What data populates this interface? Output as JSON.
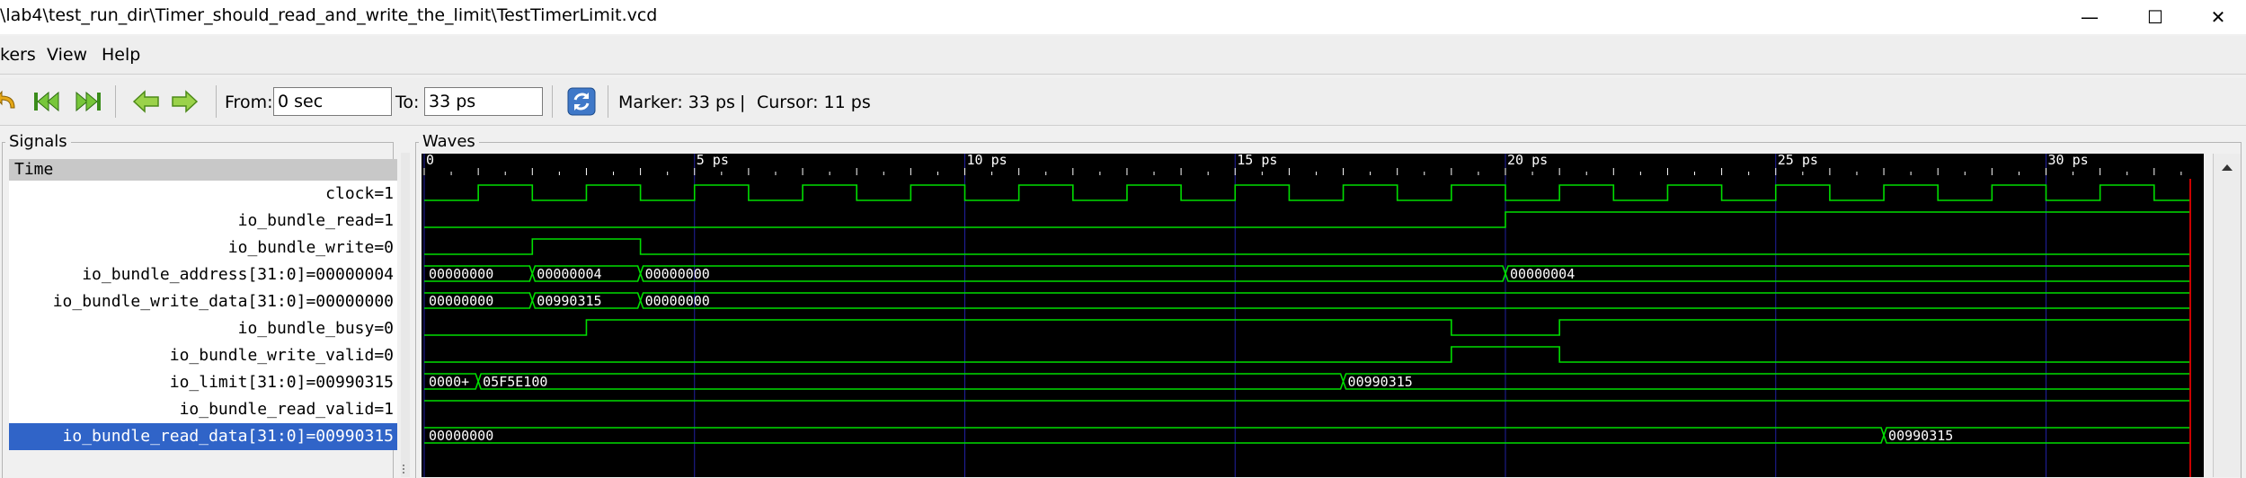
{
  "window": {
    "title": "\\lab4\\test_run_dir\\Timer_should_read_and_write_the_limit\\TestTimerLimit.vcd",
    "minimize_glyph": "—",
    "maximize_glyph": "☐",
    "close_glyph": "✕"
  },
  "menu": [
    {
      "label": "kers"
    },
    {
      "label": "View"
    },
    {
      "label": "Help"
    }
  ],
  "toolbar": {
    "undo_icon": "undo-icon",
    "zoom_start_icon": "zoom-to-start-icon",
    "zoom_end_icon": "zoom-to-end-icon",
    "prev_icon": "left-arrow-icon",
    "next_icon": "right-arrow-icon",
    "from_label": "From:",
    "from_value": "0 sec",
    "to_label": "To:",
    "to_value": "33 ps",
    "reload_icon": "reload-icon",
    "marker_text": "Marker: 33 ps",
    "sep_char": "|",
    "cursor_text": "Cursor: 11 ps"
  },
  "signals_panel": {
    "title": "Signals",
    "header": "Time",
    "rows": [
      {
        "label": "clock=1"
      },
      {
        "label": "io_bundle_read=1"
      },
      {
        "label": "io_bundle_write=0"
      },
      {
        "label": "io_bundle_address[31:0]=00000004"
      },
      {
        "label": "io_bundle_write_data[31:0]=00000000"
      },
      {
        "label": "io_bundle_busy=0"
      },
      {
        "label": "io_bundle_write_valid=0"
      },
      {
        "label": "io_limit[31:0]=00990315"
      },
      {
        "label": "io_bundle_read_valid=1"
      },
      {
        "label": "io_bundle_read_data[31:0]=00990315",
        "selected": true
      }
    ]
  },
  "waves_panel": {
    "title": "Waves",
    "time_ticks": [
      "0",
      "5 ps",
      "10 ps",
      "15 ps",
      "20 ps",
      "25 ps",
      "30 ps"
    ],
    "colors": {
      "background": "#000000",
      "wave": "#00dd00",
      "grid": "#2020a0",
      "marker": "#cc0000",
      "ruler": "#ffffff"
    },
    "time_range_ps": [
      0,
      33
    ],
    "marker_ps": 33,
    "cursor_ps": 11
  },
  "traces": [
    {
      "name": "clock",
      "type": "clock",
      "half_period_ps": 1,
      "start_level": 0
    },
    {
      "name": "io_bundle_read",
      "type": "bit",
      "transitions": [
        [
          0,
          0
        ],
        [
          20,
          1
        ]
      ]
    },
    {
      "name": "io_bundle_write",
      "type": "bit",
      "transitions": [
        [
          0,
          0
        ],
        [
          2,
          1
        ],
        [
          4,
          0
        ]
      ]
    },
    {
      "name": "io_bundle_address",
      "type": "bus",
      "segments": [
        [
          0,
          "00000000"
        ],
        [
          2,
          "00000004"
        ],
        [
          4,
          "00000000"
        ],
        [
          20,
          "00000004"
        ]
      ]
    },
    {
      "name": "io_bundle_write_data",
      "type": "bus",
      "segments": [
        [
          0,
          "00000000"
        ],
        [
          2,
          "00990315"
        ],
        [
          4,
          "00000000"
        ]
      ]
    },
    {
      "name": "io_bundle_busy",
      "type": "bit",
      "transitions": [
        [
          0,
          0
        ],
        [
          3,
          1
        ],
        [
          19,
          0
        ],
        [
          21,
          1
        ]
      ]
    },
    {
      "name": "io_bundle_write_valid",
      "type": "bit",
      "transitions": [
        [
          0,
          0
        ],
        [
          19,
          1
        ],
        [
          21,
          0
        ]
      ]
    },
    {
      "name": "io_limit",
      "type": "bus",
      "segments": [
        [
          0,
          "0000+"
        ],
        [
          1,
          "05F5E100"
        ],
        [
          17,
          "00990315"
        ]
      ]
    },
    {
      "name": "io_bundle_read_valid",
      "type": "bit",
      "transitions": [
        [
          0,
          1
        ]
      ]
    },
    {
      "name": "io_bundle_read_data",
      "type": "bus",
      "segments": [
        [
          0,
          "00000000"
        ],
        [
          27,
          "00990315"
        ]
      ]
    }
  ]
}
